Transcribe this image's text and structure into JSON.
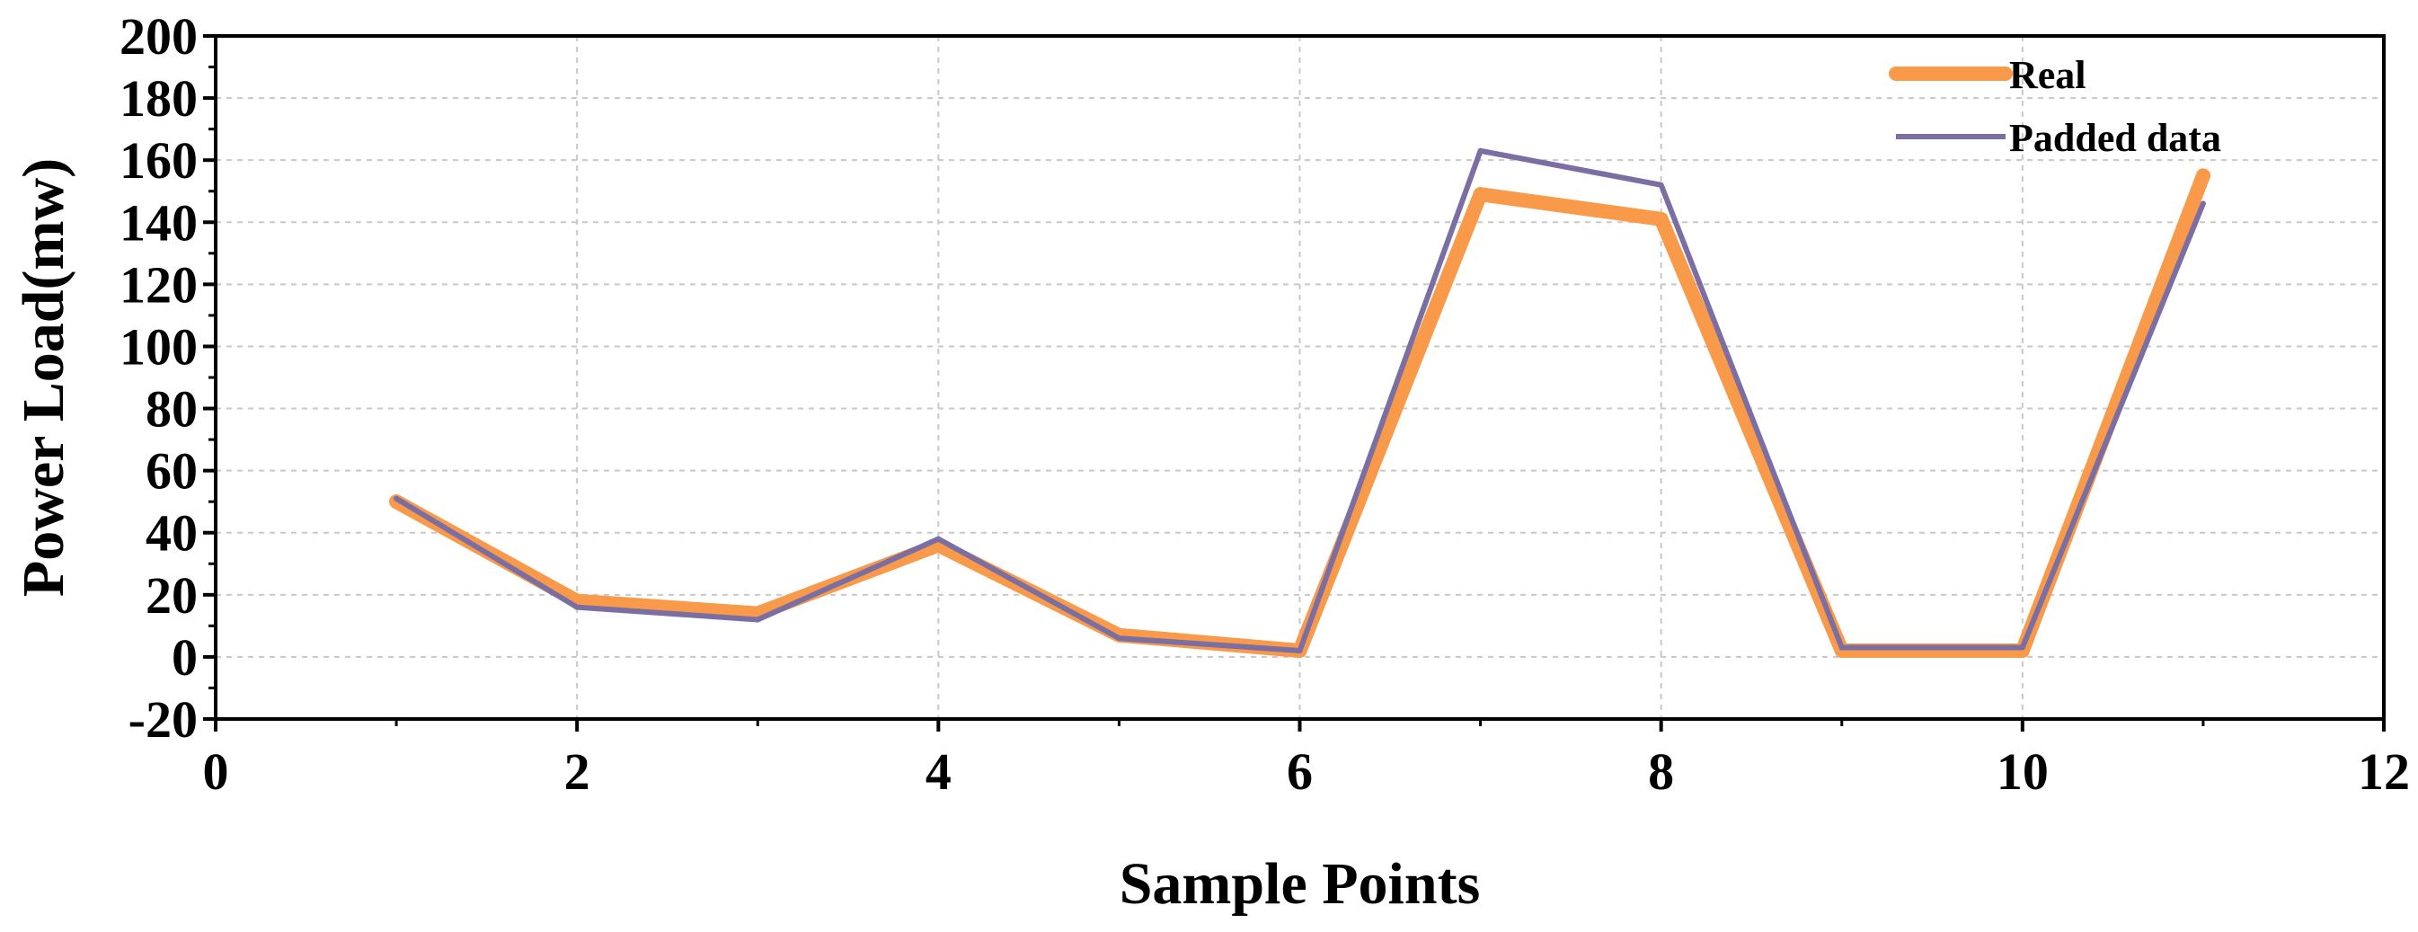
{
  "chart_data": {
    "type": "line",
    "xlabel": "Sample Points",
    "ylabel": "Power Load(mw)",
    "xlim": [
      0,
      12
    ],
    "ylim": [
      -20,
      200
    ],
    "x_ticks": [
      0,
      2,
      4,
      6,
      8,
      10,
      12
    ],
    "y_ticks": [
      -20,
      0,
      20,
      40,
      60,
      80,
      100,
      120,
      140,
      160,
      180,
      200
    ],
    "x": [
      1,
      2,
      3,
      4,
      5,
      6,
      7,
      8,
      9,
      10,
      11
    ],
    "grid": true,
    "legend_position": "top-right",
    "series": [
      {
        "name": "Real",
        "values": [
          50,
          18,
          14,
          36,
          7,
          2,
          149,
          141,
          2,
          2,
          155
        ],
        "color": "#f89a4a"
      },
      {
        "name": "Padded data",
        "values": [
          51,
          16,
          12,
          38,
          6,
          2,
          163,
          152,
          3,
          3,
          146
        ],
        "color": "#7a6ea3"
      }
    ]
  }
}
